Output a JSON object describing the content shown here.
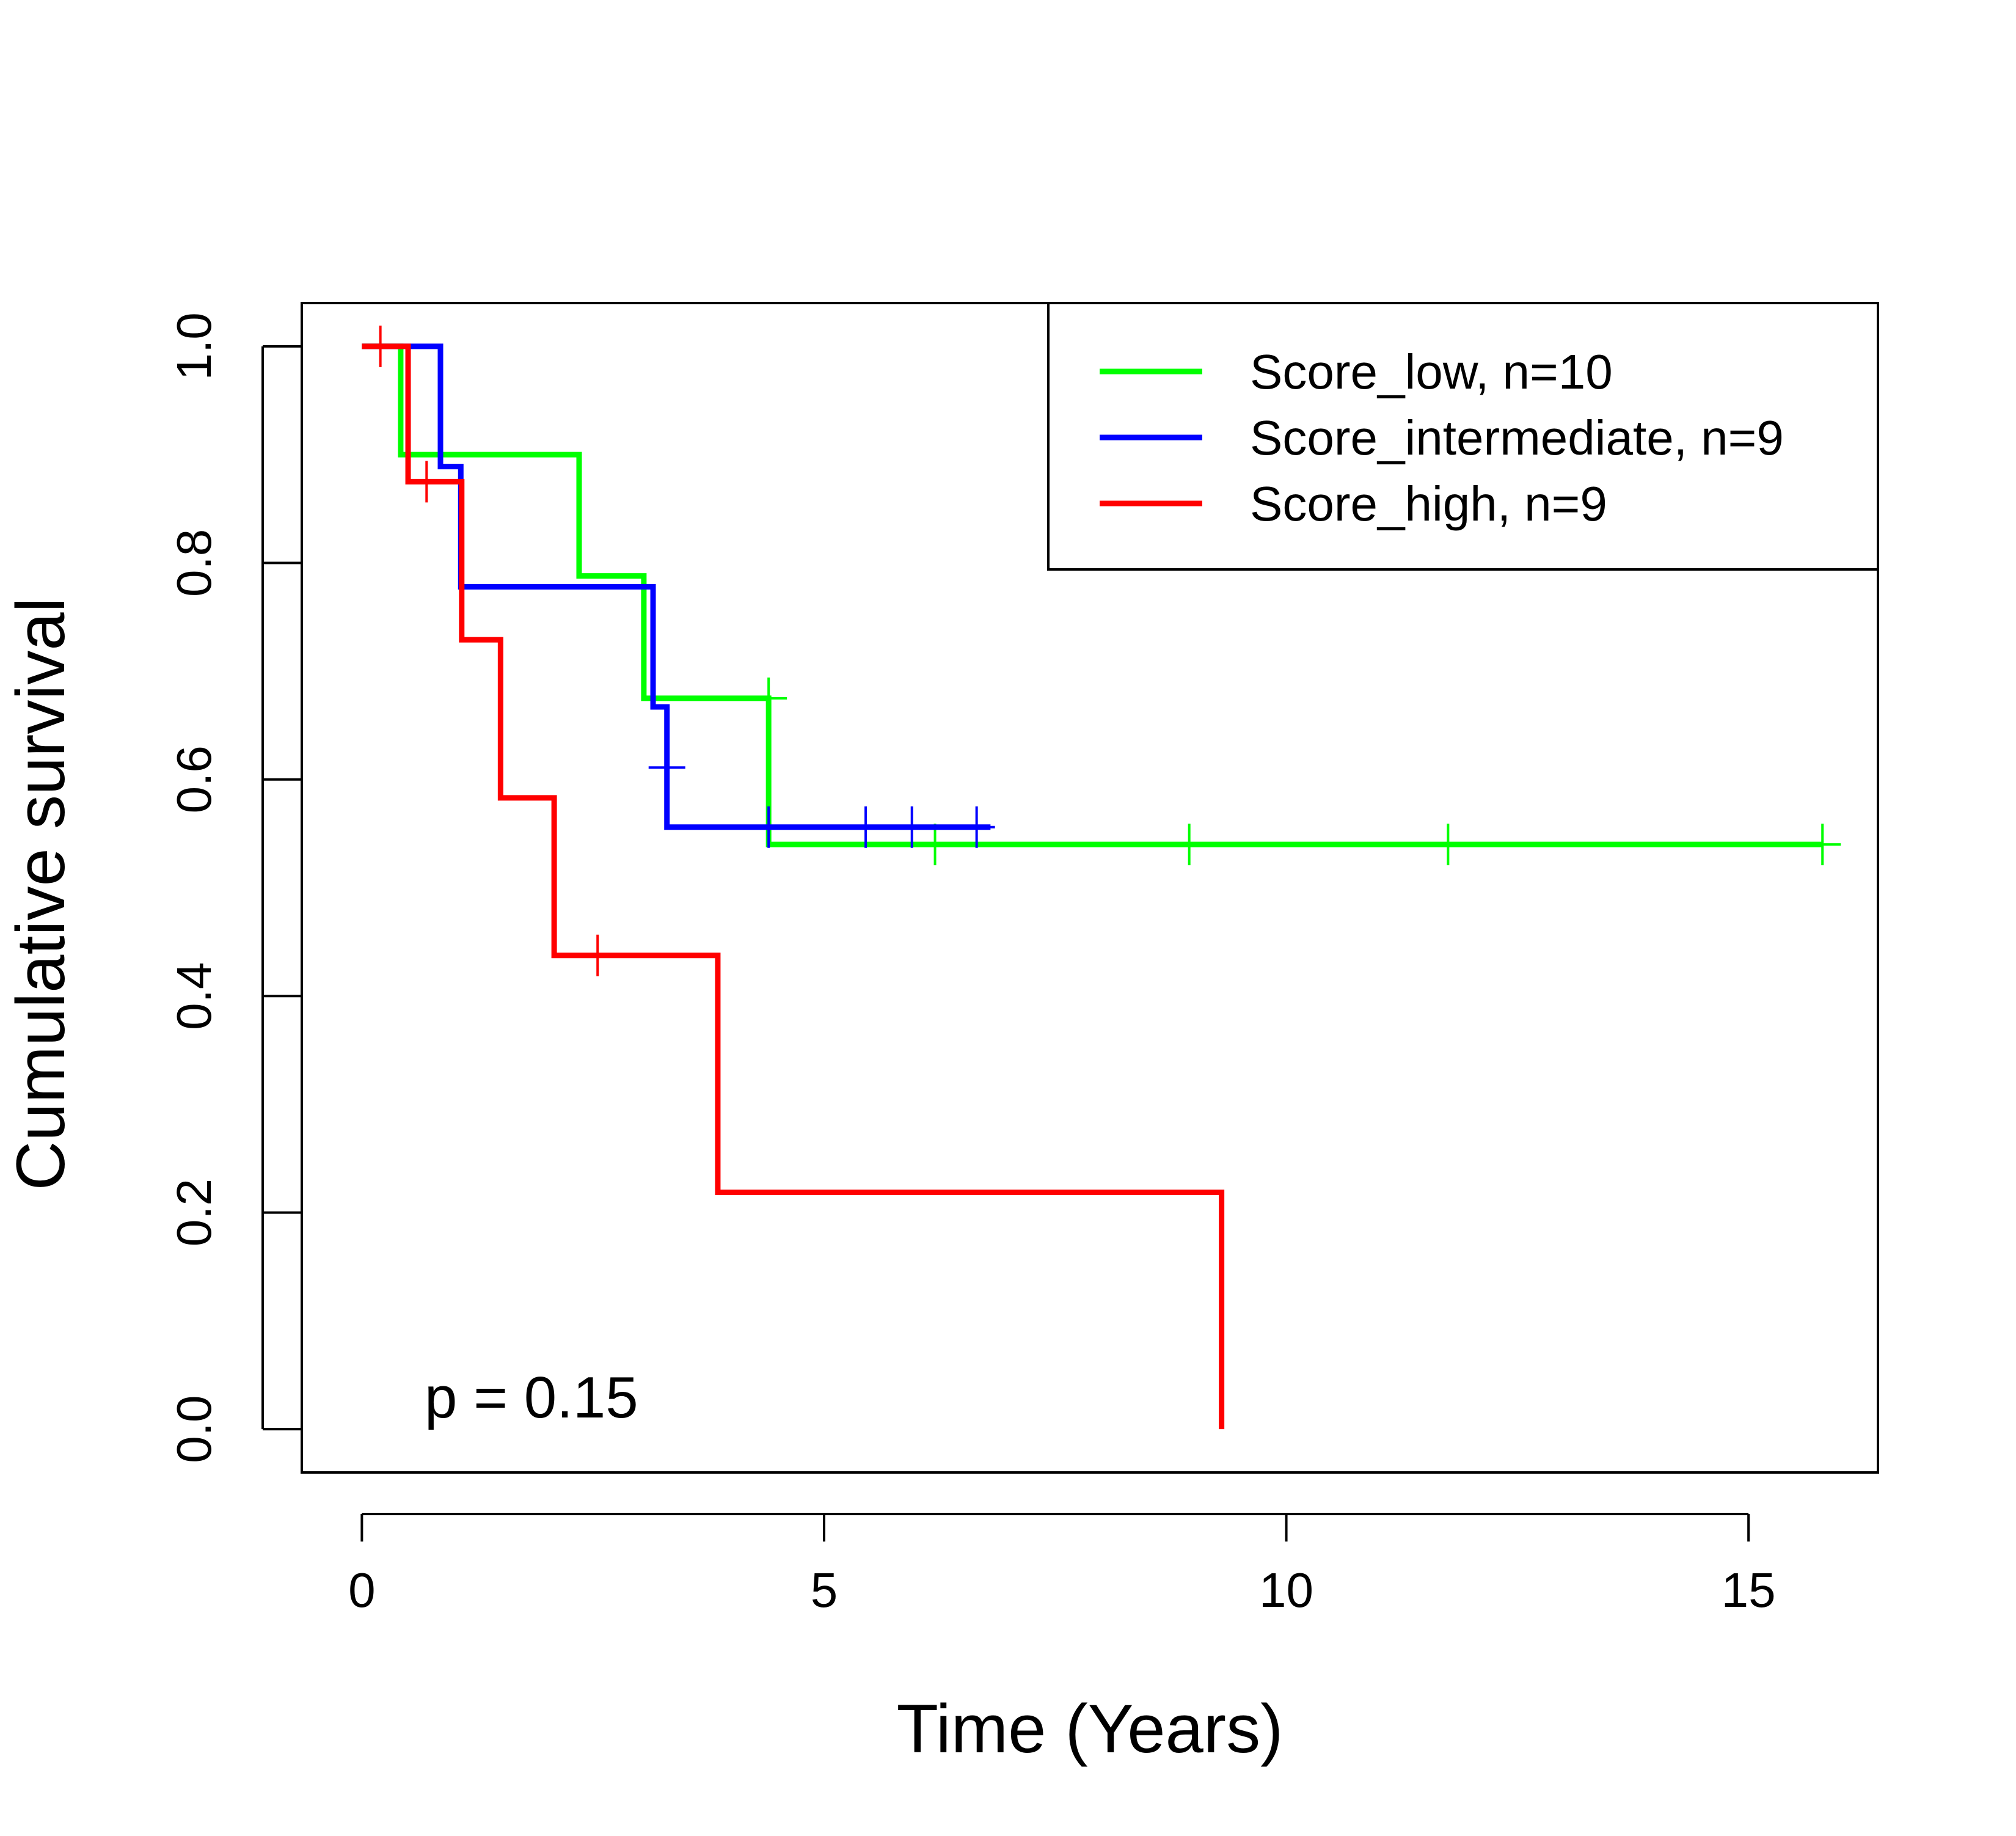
{
  "chart_data": {
    "type": "line",
    "subtype": "kaplan-meier step",
    "title": "",
    "xlabel": "Time (Years)",
    "ylabel": "Cumulative survival",
    "xlim": [
      -0.65,
      16.4
    ],
    "ylim": [
      -0.04,
      1.04
    ],
    "x_ticks": [
      0,
      5,
      10,
      15
    ],
    "x_tick_labels": [
      "0",
      "5",
      "10",
      "15"
    ],
    "y_ticks": [
      0.0,
      0.2,
      0.4,
      0.6,
      0.8,
      1.0
    ],
    "y_tick_labels": [
      "0.0",
      "0.2",
      "0.4",
      "0.6",
      "0.8",
      "1.0"
    ],
    "grid": false,
    "legend_position": "top-right",
    "annotation": "p = 0.15",
    "series": [
      {
        "name": "Score_low, n=10",
        "color": "#00FF00",
        "steps": [
          [
            0,
            1.0
          ],
          [
            0.42,
            0.9
          ],
          [
            2.35,
            0.788
          ],
          [
            3.05,
            0.675
          ],
          [
            4.4,
            0.54
          ],
          [
            15.8,
            0.54
          ]
        ],
        "censor_times": [
          4.4,
          6.2,
          8.95,
          11.75,
          15.8
        ],
        "censor_values": [
          0.675,
          0.54,
          0.54,
          0.54,
          0.54
        ]
      },
      {
        "name": "Score_intermediate, n=9",
        "color": "#0000FF",
        "steps": [
          [
            0,
            1.0
          ],
          [
            0.85,
            0.889
          ],
          [
            1.07,
            0.778
          ],
          [
            3.15,
            0.667
          ],
          [
            3.3,
            0.556
          ],
          [
            6.8,
            0.556
          ]
        ],
        "censor_times": [
          3.3,
          4.4,
          5.45,
          5.95,
          6.65
        ],
        "censor_values": [
          0.611,
          0.556,
          0.556,
          0.556,
          0.556
        ]
      },
      {
        "name": "Score_high, n=9",
        "color": "#FF0000",
        "steps": [
          [
            0,
            1.0
          ],
          [
            0.5,
            0.875
          ],
          [
            1.08,
            0.729
          ],
          [
            1.5,
            0.583
          ],
          [
            2.08,
            0.4375
          ],
          [
            3.85,
            0.21875
          ],
          [
            9.3,
            0.0
          ]
        ],
        "censor_times": [
          0.2,
          0.7,
          2.55
        ],
        "censor_values": [
          1.0,
          0.875,
          0.4375
        ]
      }
    ]
  }
}
